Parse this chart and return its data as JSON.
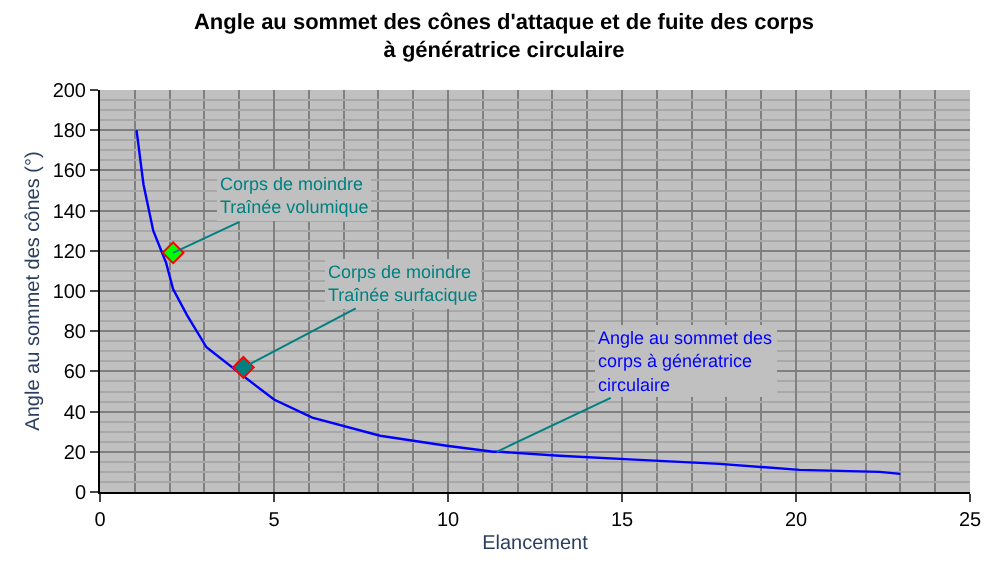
{
  "chart_data": {
    "type": "line",
    "title": "Angle au sommet des cônes d'attaque et de fuite des corps\nà génératrice circulaire",
    "xlabel": "Elancement",
    "ylabel": "Angle au sommet des cônes (°)",
    "xlim": [
      0,
      25
    ],
    "xticks": [
      0,
      5,
      10,
      15,
      20,
      25
    ],
    "ylim": [
      0,
      200
    ],
    "yticks": [
      0,
      20,
      40,
      60,
      80,
      100,
      120,
      140,
      160,
      180,
      200
    ],
    "grid": true,
    "series": [
      {
        "color": "#0000ff",
        "marker": "none",
        "x": [
          1.05,
          1.25,
          1.53,
          1.9,
          2.1,
          2.5,
          3.06,
          4.02,
          5.0,
          6.1,
          8.05,
          9.96,
          11.3,
          11.5,
          13.2,
          15.5,
          17.8,
          20.1,
          22.4,
          23.0
        ],
        "values": [
          180,
          153,
          130,
          114,
          101,
          88,
          72,
          59,
          46,
          37,
          28,
          23,
          20,
          20,
          18,
          16,
          14,
          11,
          10,
          9
        ]
      },
      {
        "type": "scatter",
        "color": "#00ff00",
        "marker": "diamond",
        "x": [
          2.1
        ],
        "values": [
          119
        ]
      },
      {
        "type": "scatter",
        "color": "#008080",
        "marker": "diamond",
        "x": [
          4.12
        ],
        "values": [
          62
        ]
      }
    ],
    "annotations": [
      {
        "text": "Corps de moindre\nTraînée volumique",
        "x": 2.1,
        "y": 119
      },
      {
        "text": "Corps de moindre\nTraînée surfacique",
        "x": 4.12,
        "y": 62
      },
      {
        "text": "Angle au sommet des\ncorps à génératrice\ncirculaire",
        "x": 11.4,
        "y": 20
      }
    ]
  }
}
